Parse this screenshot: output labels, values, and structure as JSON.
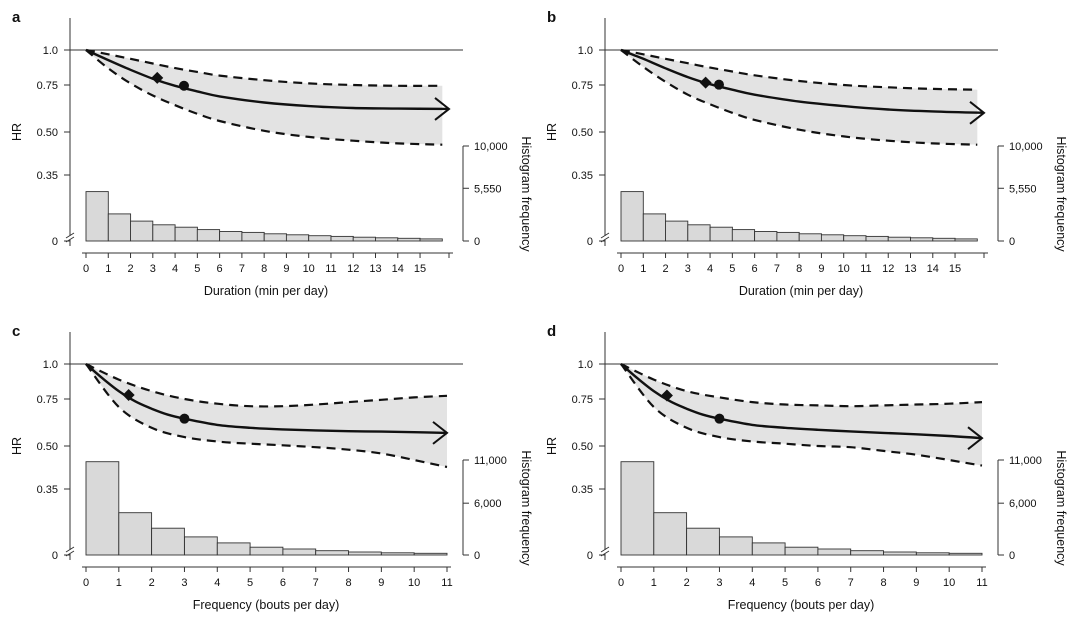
{
  "chart_data": [
    {
      "type": "line",
      "panel": "a",
      "xlabel": "Duration (min per day)",
      "ylabel": "HR",
      "y2label": "Histogram frequency",
      "x_ticks": [
        "0",
        "1",
        "2",
        "3",
        "4",
        "5",
        "6",
        "7",
        "8",
        "9",
        "10",
        "11",
        "12",
        "13",
        "14",
        "15"
      ],
      "x_range": [
        0,
        16.3
      ],
      "hr_ticks": [
        "1.0",
        "0.75",
        "0.50",
        "0.35",
        "0"
      ],
      "freq_ticks": [
        "10,000",
        "5,550",
        "0"
      ],
      "freq_range": [
        0,
        10000
      ],
      "series": [
        {
          "role": "estimate",
          "x": [
            0,
            1,
            2,
            3,
            4,
            5,
            6,
            8,
            10,
            12,
            14,
            16.3
          ],
          "y": [
            1.0,
            0.92,
            0.85,
            0.79,
            0.745,
            0.71,
            0.68,
            0.645,
            0.625,
            0.615,
            0.612,
            0.61
          ]
        },
        {
          "role": "upper_ci",
          "x": [
            0,
            1,
            2,
            3,
            4,
            5,
            6,
            8,
            10,
            12,
            14,
            16
          ],
          "y": [
            1.0,
            0.965,
            0.93,
            0.895,
            0.862,
            0.835,
            0.81,
            0.78,
            0.76,
            0.75,
            0.745,
            0.745
          ]
        },
        {
          "role": "lower_ci",
          "x": [
            0,
            1,
            2,
            3,
            4,
            5,
            6,
            8,
            10,
            12,
            14,
            16
          ],
          "y": [
            1.0,
            0.86,
            0.76,
            0.685,
            0.63,
            0.585,
            0.55,
            0.505,
            0.48,
            0.465,
            0.455,
            0.45
          ]
        }
      ],
      "markers": [
        {
          "shape": "diamond",
          "x": 3.2,
          "y": 0.795
        },
        {
          "shape": "circle",
          "x": 4.4,
          "y": 0.745
        }
      ],
      "histogram": {
        "bin_edges": [
          0,
          1,
          2,
          3,
          4,
          5,
          6,
          7,
          8,
          9,
          10,
          11,
          12,
          13,
          14,
          15,
          16
        ],
        "values": [
          5200,
          2850,
          2100,
          1700,
          1450,
          1200,
          1000,
          900,
          760,
          650,
          560,
          480,
          400,
          340,
          280,
          220
        ]
      }
    },
    {
      "type": "line",
      "panel": "b",
      "xlabel": "Duration (min per day)",
      "ylabel": "HR",
      "y2label": "Histogram frequency",
      "x_ticks": [
        "0",
        "1",
        "2",
        "3",
        "4",
        "5",
        "6",
        "7",
        "8",
        "9",
        "10",
        "11",
        "12",
        "13",
        "14",
        "15"
      ],
      "x_range": [
        0,
        16.3
      ],
      "hr_ticks": [
        "1.0",
        "0.75",
        "0.50",
        "0.35",
        "0"
      ],
      "freq_ticks": [
        "10,000",
        "5,550",
        "0"
      ],
      "freq_range": [
        0,
        10000
      ],
      "series": [
        {
          "role": "estimate",
          "x": [
            0,
            1,
            2,
            3,
            4,
            5,
            6,
            8,
            10,
            12,
            14,
            16.3
          ],
          "y": [
            1.0,
            0.93,
            0.86,
            0.8,
            0.755,
            0.72,
            0.69,
            0.65,
            0.625,
            0.607,
            0.597,
            0.59
          ]
        },
        {
          "role": "upper_ci",
          "x": [
            0,
            1,
            2,
            3,
            4,
            5,
            6,
            8,
            10,
            12,
            14,
            16
          ],
          "y": [
            1.0,
            0.965,
            0.93,
            0.897,
            0.865,
            0.838,
            0.812,
            0.775,
            0.75,
            0.735,
            0.725,
            0.72
          ]
        },
        {
          "role": "lower_ci",
          "x": [
            0,
            1,
            2,
            3,
            4,
            5,
            6,
            8,
            10,
            12,
            14,
            16
          ],
          "y": [
            1.0,
            0.87,
            0.77,
            0.69,
            0.635,
            0.59,
            0.555,
            0.51,
            0.482,
            0.465,
            0.455,
            0.45
          ]
        }
      ],
      "markers": [
        {
          "shape": "diamond",
          "x": 3.8,
          "y": 0.765
        },
        {
          "shape": "circle",
          "x": 4.4,
          "y": 0.752
        }
      ],
      "histogram": {
        "bin_edges": [
          0,
          1,
          2,
          3,
          4,
          5,
          6,
          7,
          8,
          9,
          10,
          11,
          12,
          13,
          14,
          15,
          16
        ],
        "values": [
          5200,
          2850,
          2100,
          1700,
          1450,
          1200,
          1000,
          900,
          760,
          650,
          560,
          480,
          400,
          340,
          280,
          220
        ]
      }
    },
    {
      "type": "line",
      "panel": "c",
      "xlabel": "Frequency (bouts per day)",
      "ylabel": "HR",
      "y2label": "Histogram frequency",
      "x_ticks": [
        "0",
        "1",
        "2",
        "3",
        "4",
        "5",
        "6",
        "7",
        "8",
        "9",
        "10",
        "11"
      ],
      "x_range": [
        0,
        11
      ],
      "hr_ticks": [
        "1.0",
        "0.75",
        "0.50",
        "0.35",
        "0"
      ],
      "freq_ticks": [
        "11,000",
        "6,000",
        "0"
      ],
      "freq_range": [
        0,
        11000
      ],
      "series": [
        {
          "role": "estimate",
          "x": [
            0,
            0.5,
            1,
            1.5,
            2,
            2.5,
            3,
            4,
            5,
            6,
            7,
            8,
            9,
            10,
            11
          ],
          "y": [
            1.0,
            0.89,
            0.8,
            0.735,
            0.69,
            0.655,
            0.633,
            0.6,
            0.585,
            0.577,
            0.572,
            0.568,
            0.566,
            0.563,
            0.56
          ]
        },
        {
          "role": "upper_ci",
          "x": [
            0,
            1,
            2,
            3,
            4,
            5,
            6,
            7,
            8,
            9,
            10,
            11
          ],
          "y": [
            1.0,
            0.88,
            0.8,
            0.75,
            0.72,
            0.705,
            0.705,
            0.715,
            0.73,
            0.745,
            0.76,
            0.77
          ]
        },
        {
          "role": "lower_ci",
          "x": [
            0,
            1,
            2,
            3,
            4,
            5,
            6,
            7,
            8,
            9,
            10,
            11
          ],
          "y": [
            1.0,
            0.7,
            0.585,
            0.54,
            0.52,
            0.51,
            0.503,
            0.495,
            0.485,
            0.47,
            0.445,
            0.42
          ]
        }
      ],
      "markers": [
        {
          "shape": "diamond",
          "x": 1.3,
          "y": 0.775
        },
        {
          "shape": "circle",
          "x": 3.0,
          "y": 0.633
        }
      ],
      "histogram": {
        "bin_edges": [
          0,
          1,
          2,
          3,
          4,
          5,
          6,
          7,
          8,
          9,
          10,
          11
        ],
        "values": [
          10800,
          4900,
          3100,
          2100,
          1400,
          900,
          700,
          500,
          350,
          250,
          200
        ]
      }
    },
    {
      "type": "line",
      "panel": "d",
      "xlabel": "Frequency (bouts per day)",
      "ylabel": "HR",
      "y2label": "Histogram frequency",
      "x_ticks": [
        "0",
        "1",
        "2",
        "3",
        "4",
        "5",
        "6",
        "7",
        "8",
        "9",
        "10",
        "11"
      ],
      "x_range": [
        0,
        11
      ],
      "hr_ticks": [
        "1.0",
        "0.75",
        "0.50",
        "0.35",
        "0"
      ],
      "freq_ticks": [
        "11,000",
        "6,000",
        "0"
      ],
      "freq_range": [
        0,
        11000
      ],
      "series": [
        {
          "role": "estimate",
          "x": [
            0,
            0.5,
            1,
            1.5,
            2,
            2.5,
            3,
            4,
            5,
            6,
            7,
            8,
            9,
            10,
            11
          ],
          "y": [
            1.0,
            0.89,
            0.8,
            0.735,
            0.69,
            0.655,
            0.633,
            0.6,
            0.585,
            0.575,
            0.567,
            0.56,
            0.553,
            0.545,
            0.535
          ]
        },
        {
          "role": "upper_ci",
          "x": [
            0,
            1,
            2,
            3,
            4,
            5,
            6,
            7,
            8,
            9,
            10,
            11
          ],
          "y": [
            1.0,
            0.88,
            0.8,
            0.76,
            0.73,
            0.715,
            0.71,
            0.705,
            0.71,
            0.715,
            0.72,
            0.73
          ]
        },
        {
          "role": "lower_ci",
          "x": [
            0,
            1,
            2,
            3,
            4,
            5,
            6,
            7,
            8,
            9,
            10,
            11
          ],
          "y": [
            1.0,
            0.7,
            0.585,
            0.54,
            0.52,
            0.51,
            0.5,
            0.495,
            0.48,
            0.465,
            0.445,
            0.425
          ]
        }
      ],
      "markers": [
        {
          "shape": "diamond",
          "x": 1.4,
          "y": 0.772
        },
        {
          "shape": "circle",
          "x": 3.0,
          "y": 0.633
        }
      ],
      "histogram": {
        "bin_edges": [
          0,
          1,
          2,
          3,
          4,
          5,
          6,
          7,
          8,
          9,
          10,
          11
        ],
        "values": [
          10800,
          4900,
          3100,
          2100,
          1400,
          900,
          700,
          500,
          350,
          250,
          200
        ]
      }
    }
  ]
}
